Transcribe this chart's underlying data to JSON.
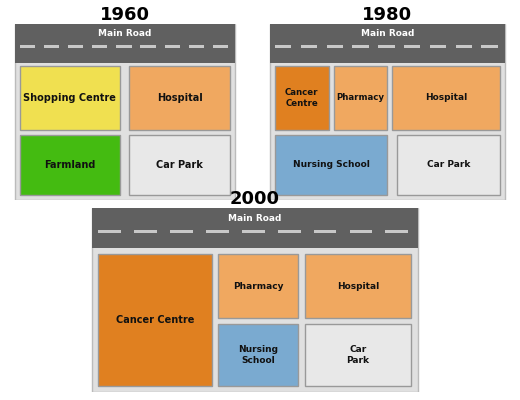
{
  "title_1960": "1960",
  "title_1980": "1980",
  "title_2000": "2000",
  "road_label": "Main Road",
  "road_color": "#606060",
  "road_line_color": "#c8c8c8",
  "panel_bg": "#e0e0e0",
  "panel_edge": "#bbbbbb",
  "orange_dark": "#e08020",
  "orange_light": "#f0a860",
  "yellow": "#f0e050",
  "green": "#44bb11",
  "blue": "#7aaad0",
  "gray_light": "#e8e8e8",
  "white": "#ffffff",
  "box_edge": "#999999",
  "text_color": "#111111"
}
